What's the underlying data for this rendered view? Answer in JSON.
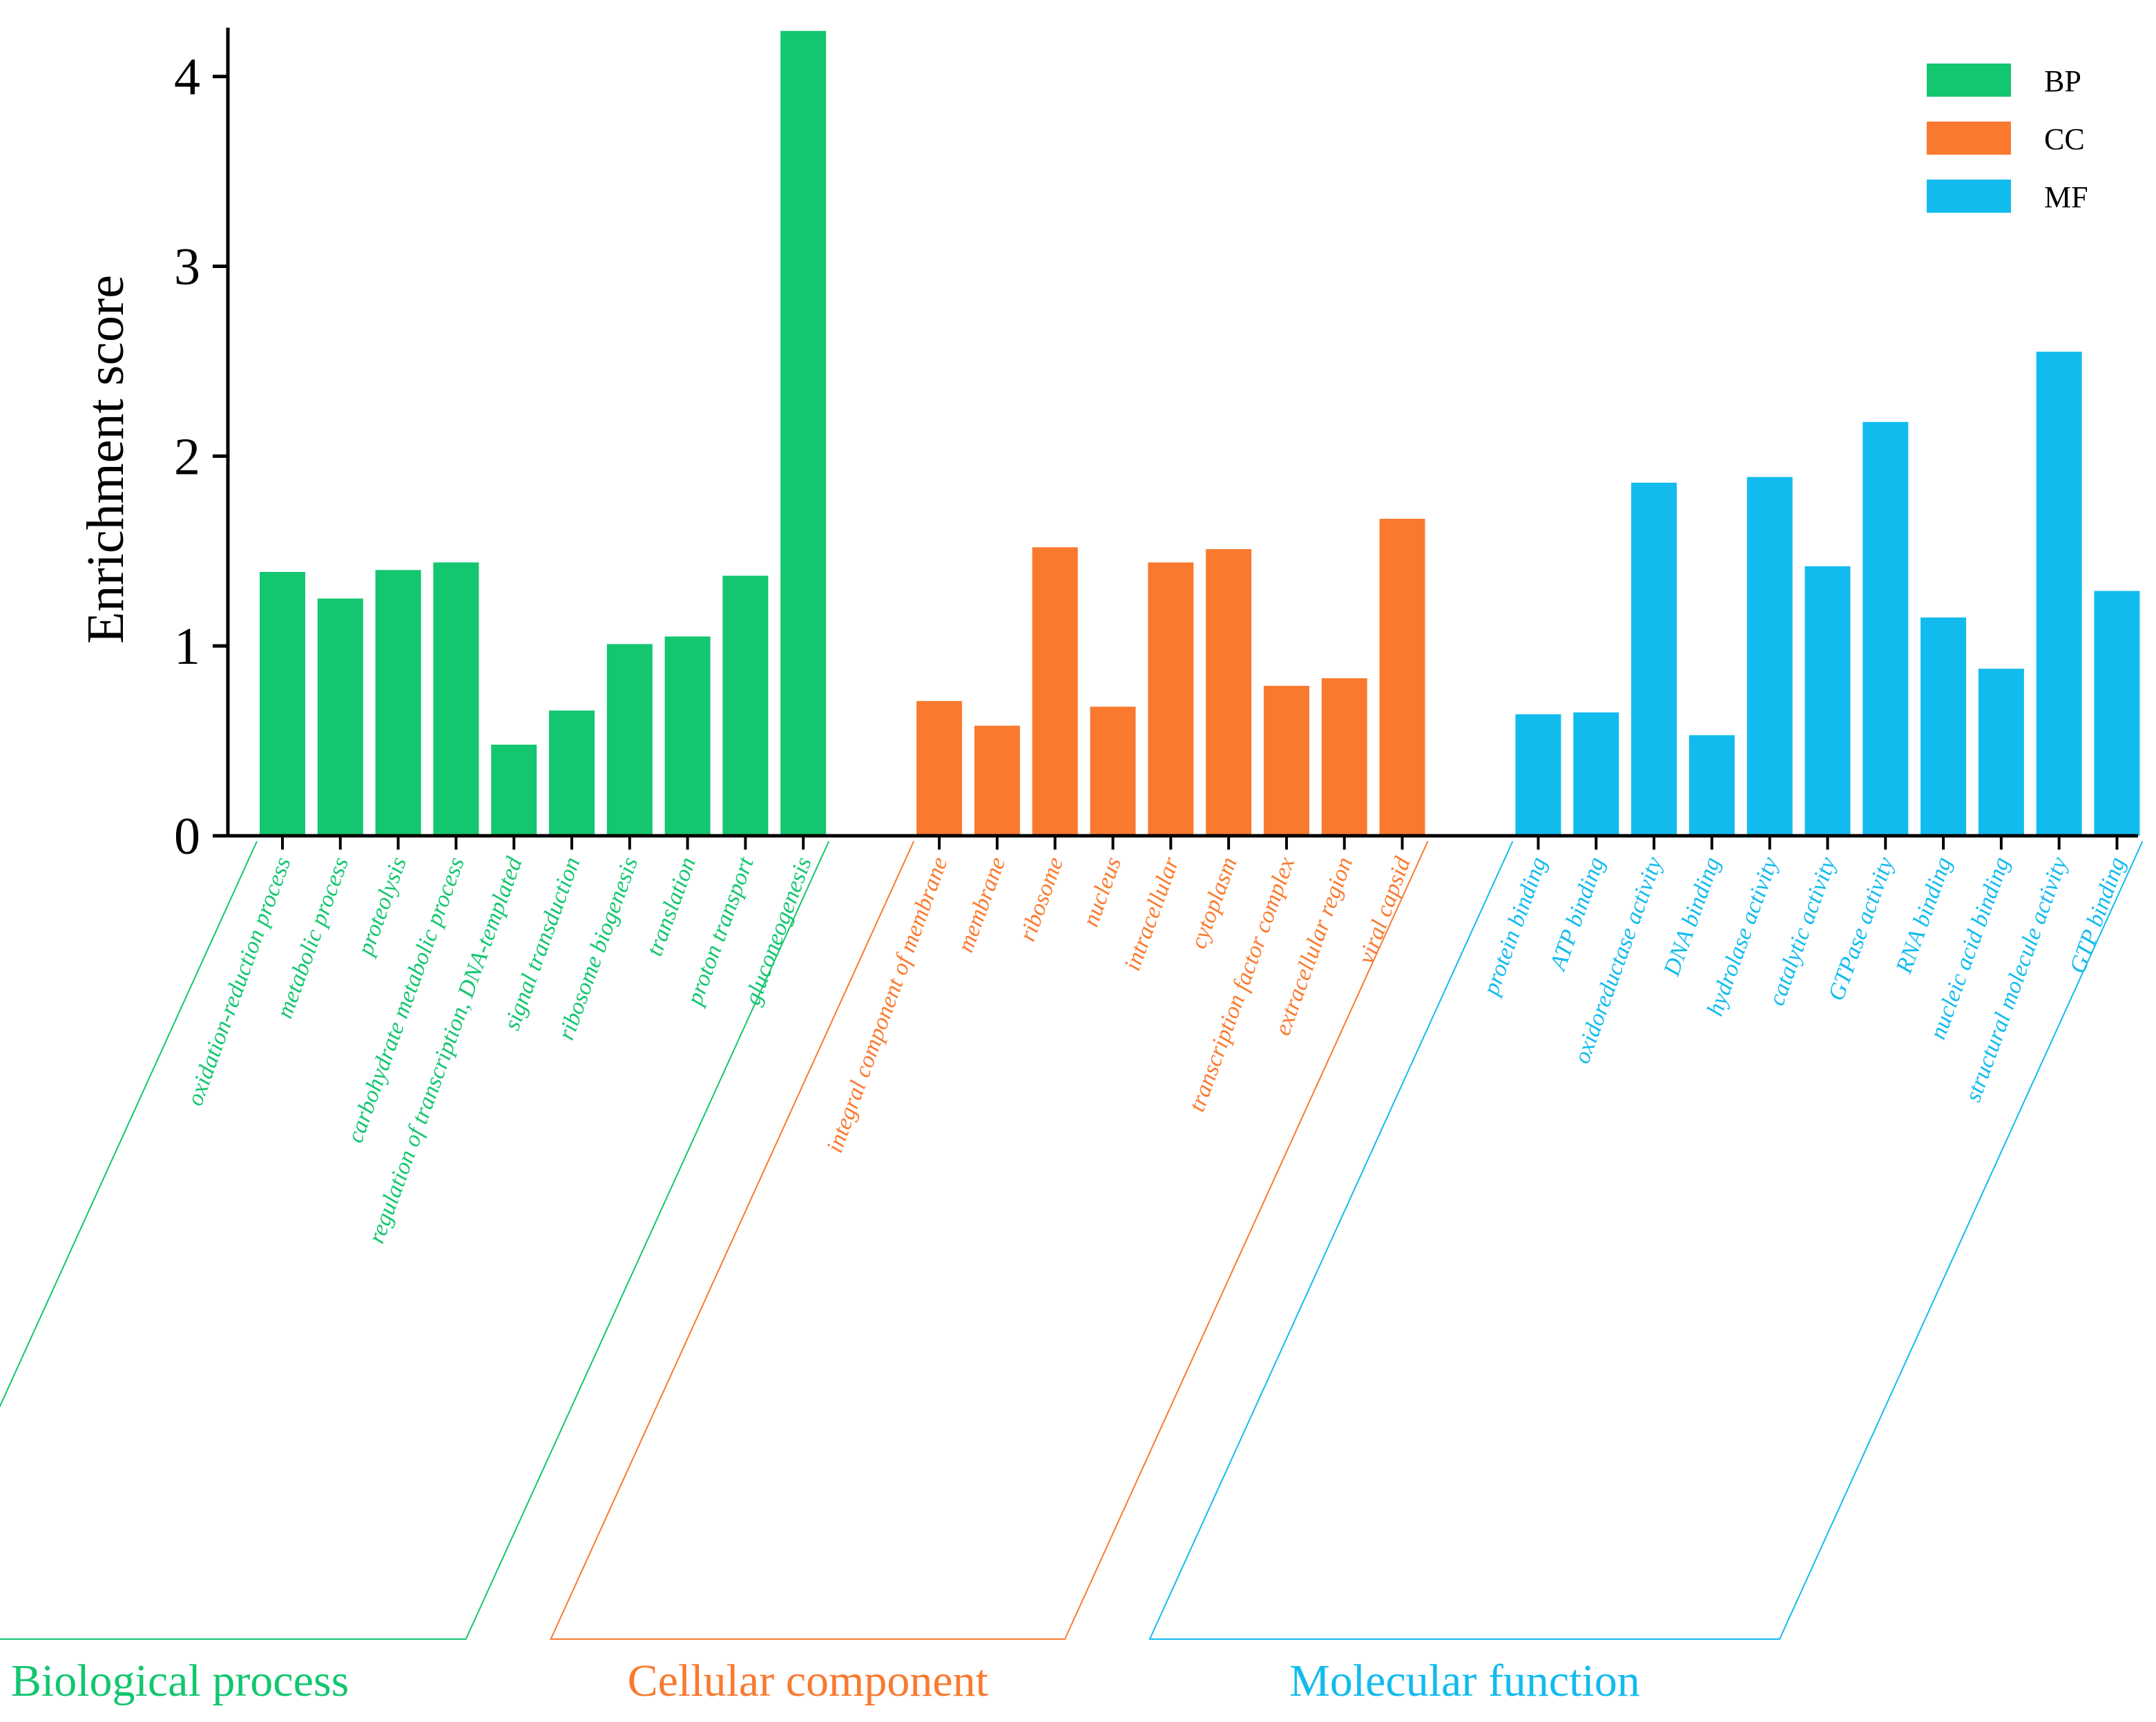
{
  "chart_data": {
    "type": "bar",
    "ylabel": "Enrichment score",
    "ylim": [
      0,
      4.25
    ],
    "yticks": [
      0,
      1,
      2,
      3,
      4
    ],
    "grid": false,
    "legend_position": "top-right",
    "legend": [
      {
        "key": "BP",
        "label": "BP",
        "color": "#13c66f"
      },
      {
        "key": "CC",
        "label": "CC",
        "color": "#f97a2f"
      },
      {
        "key": "MF",
        "label": "MF",
        "color": "#12bbee"
      }
    ],
    "groups": [
      {
        "key": "BP",
        "title": "Biological process",
        "color": "#13c66f",
        "categories": [
          "oxidation-reduction process",
          "metabolic process",
          "proteolysis",
          "carbohydrate metabolic process",
          "regulation of transcription, DNA-templated",
          "signal transduction",
          "ribosome biogenesis",
          "translation",
          "proton transport",
          "gluconeogenesis"
        ],
        "values": [
          1.39,
          1.25,
          1.4,
          1.44,
          0.48,
          0.66,
          1.01,
          1.05,
          1.37,
          4.24
        ]
      },
      {
        "key": "CC",
        "title": "Cellular component",
        "color": "#f97a2f",
        "categories": [
          "integral component of membrane",
          "membrane",
          "ribosome",
          "nucleus",
          "intracellular",
          "cytoplasm",
          "transcription factor complex",
          "extracellular region",
          "viral capsid"
        ],
        "values": [
          0.71,
          0.58,
          1.52,
          0.68,
          1.44,
          1.51,
          0.79,
          0.83,
          1.67
        ]
      },
      {
        "key": "MF",
        "title": "Molecular function",
        "color": "#12bbee",
        "categories": [
          "protein binding",
          "ATP binding",
          "oxidoreductase activity",
          "DNA binding",
          "hydrolase activity",
          "catalytic activity",
          "GTPase activity",
          "RNA binding",
          "nucleic acid binding",
          "structural molecule activity",
          "GTP binding"
        ],
        "values": [
          0.64,
          0.65,
          1.86,
          0.53,
          1.89,
          1.42,
          2.18,
          1.15,
          0.88,
          2.55,
          1.29
        ]
      }
    ]
  }
}
